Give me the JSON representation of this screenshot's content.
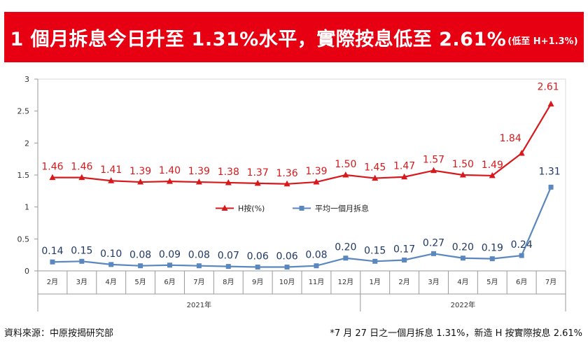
{
  "header": {
    "title": "1 個月拆息今日升至 1.31%水平，實際按息低至 2.61%",
    "subtitle": "(低至 H+1.3%)"
  },
  "footer": {
    "source": "資料來源：中原按揭研究部",
    "note": "*7 月 27 日之一個月拆息 1.31%，新造 H 按實際按息 2.61%"
  },
  "colors": {
    "banner": "#e60012",
    "h_series": "#d7191c",
    "hibor_series": "#5b87bf",
    "hibor_label": "#1f3864"
  },
  "chart_data": {
    "type": "line",
    "title": "",
    "categories": [
      "2月",
      "3月",
      "4月",
      "5月",
      "6月",
      "7月",
      "8月",
      "9月",
      "10月",
      "11月",
      "12月",
      "1月",
      "2月",
      "3月",
      "4月",
      "5月",
      "6月",
      "7月"
    ],
    "groups": [
      {
        "label": "2021年",
        "start": 0,
        "end": 10
      },
      {
        "label": "2022年",
        "start": 11,
        "end": 17
      }
    ],
    "ylim": [
      0,
      3
    ],
    "yticks": [
      "0",
      "0.5",
      "1",
      "1.5",
      "2",
      "2.5",
      "3"
    ],
    "series": [
      {
        "name": "H按(%)",
        "color": "#d7191c",
        "marker": "triangle",
        "values": [
          1.46,
          1.46,
          1.41,
          1.39,
          1.4,
          1.39,
          1.38,
          1.37,
          1.36,
          1.39,
          1.5,
          1.45,
          1.47,
          1.57,
          1.5,
          1.49,
          1.84,
          2.61
        ],
        "labels": [
          "1.46",
          "1.46",
          "1.41",
          "1.39",
          "1.40",
          "1.39",
          "1.38",
          "1.37",
          "1.36",
          "1.39",
          "1.50",
          "1.45",
          "1.47",
          "1.57",
          "1.50",
          "1.49",
          "1.84",
          "2.61"
        ]
      },
      {
        "name": "平均一個月拆息",
        "color": "#5b87bf",
        "marker": "square",
        "values": [
          0.14,
          0.15,
          0.1,
          0.08,
          0.09,
          0.08,
          0.07,
          0.06,
          0.06,
          0.08,
          0.2,
          0.15,
          0.17,
          0.27,
          0.2,
          0.19,
          0.24,
          1.31
        ],
        "labels": [
          "0.14",
          "0.15",
          "0.10",
          "0.08",
          "0.09",
          "0.08",
          "0.07",
          "0.06",
          "0.06",
          "0.08",
          "0.20",
          "0.15",
          "0.17",
          "0.27",
          "0.20",
          "0.19",
          "0.24",
          "1.31"
        ]
      }
    ],
    "legend": "center"
  }
}
